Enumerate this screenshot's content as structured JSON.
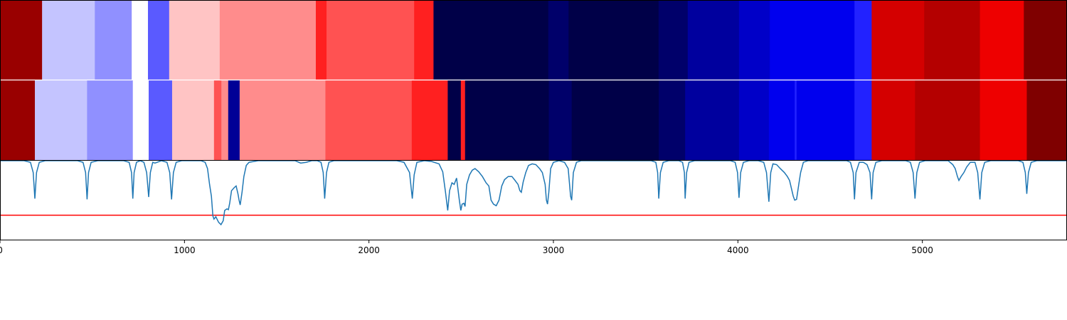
{
  "chart_data": {
    "type": "heatmap",
    "title": "",
    "xlabel": "",
    "ylabel": "",
    "xlim": [
      0,
      5784
    ],
    "grid": false,
    "legend": "none",
    "colormap": "seismic",
    "xticks": [
      {
        "value": 0,
        "label": "0"
      },
      {
        "value": 1000,
        "label": "1000"
      },
      {
        "value": 2000,
        "label": "2000"
      },
      {
        "value": 3000,
        "label": "3000"
      },
      {
        "value": 4000,
        "label": "4000"
      },
      {
        "value": 5000,
        "label": "5000"
      }
    ],
    "tracks": [
      {
        "segments": [
          {
            "start": 0,
            "end": 228,
            "color": "#990000"
          },
          {
            "start": 228,
            "end": 514,
            "color": "#c4c4ff"
          },
          {
            "start": 514,
            "end": 714,
            "color": "#9090ff"
          },
          {
            "start": 714,
            "end": 802,
            "color": "#ffffff"
          },
          {
            "start": 802,
            "end": 917,
            "color": "#5a5aff"
          },
          {
            "start": 917,
            "end": 1191,
            "color": "#ffc4c4"
          },
          {
            "start": 1191,
            "end": 1712,
            "color": "#ff8c8c"
          },
          {
            "start": 1712,
            "end": 1770,
            "color": "#ff2020"
          },
          {
            "start": 1770,
            "end": 2245,
            "color": "#ff5252"
          },
          {
            "start": 2245,
            "end": 2350,
            "color": "#ff2020"
          },
          {
            "start": 2350,
            "end": 2972,
            "color": "#000048"
          },
          {
            "start": 2972,
            "end": 3082,
            "color": "#00006a"
          },
          {
            "start": 3082,
            "end": 3570,
            "color": "#000048"
          },
          {
            "start": 3570,
            "end": 3728,
            "color": "#00006a"
          },
          {
            "start": 3728,
            "end": 4006,
            "color": "#00009e"
          },
          {
            "start": 4006,
            "end": 4173,
            "color": "#0000c8"
          },
          {
            "start": 4173,
            "end": 4632,
            "color": "#0000ee"
          },
          {
            "start": 4632,
            "end": 4725,
            "color": "#2222ff"
          },
          {
            "start": 4725,
            "end": 5010,
            "color": "#d40000"
          },
          {
            "start": 5010,
            "end": 5312,
            "color": "#b40000"
          },
          {
            "start": 5312,
            "end": 5550,
            "color": "#ee0000"
          },
          {
            "start": 5550,
            "end": 5784,
            "color": "#7f0000"
          }
        ]
      },
      {
        "segments": [
          {
            "start": 0,
            "end": 189,
            "color": "#990000"
          },
          {
            "start": 189,
            "end": 472,
            "color": "#c4c4ff"
          },
          {
            "start": 472,
            "end": 720,
            "color": "#9090ff"
          },
          {
            "start": 720,
            "end": 806,
            "color": "#ffffff"
          },
          {
            "start": 806,
            "end": 933,
            "color": "#5a5aff"
          },
          {
            "start": 933,
            "end": 1160,
            "color": "#ffc4c4"
          },
          {
            "start": 1160,
            "end": 1200,
            "color": "#ff5252"
          },
          {
            "start": 1200,
            "end": 1237,
            "color": "#ff8c8c"
          },
          {
            "start": 1237,
            "end": 1299,
            "color": "#000096"
          },
          {
            "start": 1299,
            "end": 1764,
            "color": "#ff8c8c"
          },
          {
            "start": 1764,
            "end": 2232,
            "color": "#ff5252"
          },
          {
            "start": 2232,
            "end": 2427,
            "color": "#ff2020"
          },
          {
            "start": 2427,
            "end": 2498,
            "color": "#000048"
          },
          {
            "start": 2498,
            "end": 2521,
            "color": "#ff2020"
          },
          {
            "start": 2521,
            "end": 2975,
            "color": "#000048"
          },
          {
            "start": 2975,
            "end": 3099,
            "color": "#00006a"
          },
          {
            "start": 3099,
            "end": 3571,
            "color": "#000048"
          },
          {
            "start": 3571,
            "end": 3714,
            "color": "#00006a"
          },
          {
            "start": 3714,
            "end": 4006,
            "color": "#00009e"
          },
          {
            "start": 4006,
            "end": 4168,
            "color": "#0000c8"
          },
          {
            "start": 4168,
            "end": 4308,
            "color": "#0000ee"
          },
          {
            "start": 4308,
            "end": 4318,
            "color": "#2222ff"
          },
          {
            "start": 4318,
            "end": 4632,
            "color": "#0000ee"
          },
          {
            "start": 4632,
            "end": 4725,
            "color": "#2222ff"
          },
          {
            "start": 4725,
            "end": 4960,
            "color": "#d40000"
          },
          {
            "start": 4960,
            "end": 5312,
            "color": "#b40000"
          },
          {
            "start": 5312,
            "end": 5566,
            "color": "#ee0000"
          },
          {
            "start": 5566,
            "end": 5784,
            "color": "#7f0000"
          }
        ]
      }
    ],
    "line_panel": {
      "ylim": [
        0,
        1
      ],
      "series_color": "#1f77b4",
      "threshold": {
        "value": 0.31,
        "color": "#ff0000"
      },
      "points": [
        [
          0,
          1.0
        ],
        [
          130,
          1.0
        ],
        [
          165,
          0.98
        ],
        [
          180,
          0.85
        ],
        [
          189,
          0.52
        ],
        [
          198,
          0.85
        ],
        [
          213,
          0.98
        ],
        [
          245,
          1.0
        ],
        [
          420,
          1.0
        ],
        [
          450,
          0.98
        ],
        [
          464,
          0.85
        ],
        [
          472,
          0.51
        ],
        [
          480,
          0.85
        ],
        [
          494,
          0.98
        ],
        [
          530,
          1.0
        ],
        [
          670,
          1.0
        ],
        [
          700,
          0.98
        ],
        [
          713,
          0.85
        ],
        [
          720,
          0.52
        ],
        [
          727,
          0.85
        ],
        [
          740,
          0.98
        ],
        [
          760,
          1.0
        ],
        [
          780,
          0.98
        ],
        [
          795,
          0.85
        ],
        [
          806,
          0.54
        ],
        [
          815,
          0.85
        ],
        [
          828,
          0.98
        ],
        [
          840,
          0.97
        ],
        [
          875,
          1.0
        ],
        [
          905,
          0.98
        ],
        [
          920,
          0.85
        ],
        [
          930,
          0.51
        ],
        [
          940,
          0.85
        ],
        [
          955,
          0.98
        ],
        [
          985,
          1.0
        ],
        [
          1090,
          1.0
        ],
        [
          1112,
          0.98
        ],
        [
          1125,
          0.9
        ],
        [
          1136,
          0.7
        ],
        [
          1146,
          0.55
        ],
        [
          1154,
          0.3
        ],
        [
          1160,
          0.26
        ],
        [
          1170,
          0.29
        ],
        [
          1185,
          0.22
        ],
        [
          1198,
          0.19
        ],
        [
          1210,
          0.24
        ],
        [
          1218,
          0.37
        ],
        [
          1230,
          0.39
        ],
        [
          1238,
          0.38
        ],
        [
          1245,
          0.46
        ],
        [
          1255,
          0.62
        ],
        [
          1270,
          0.66
        ],
        [
          1280,
          0.68
        ],
        [
          1290,
          0.58
        ],
        [
          1296,
          0.5
        ],
        [
          1302,
          0.44
        ],
        [
          1312,
          0.6
        ],
        [
          1322,
          0.8
        ],
        [
          1335,
          0.94
        ],
        [
          1350,
          0.98
        ],
        [
          1400,
          1.0
        ],
        [
          1600,
          1.0
        ],
        [
          1630,
          0.97
        ],
        [
          1660,
          0.98
        ],
        [
          1690,
          1.0
        ],
        [
          1720,
          1.0
        ],
        [
          1740,
          0.98
        ],
        [
          1752,
          0.85
        ],
        [
          1760,
          0.52
        ],
        [
          1770,
          0.85
        ],
        [
          1783,
          0.98
        ],
        [
          1810,
          1.0
        ],
        [
          2150,
          1.0
        ],
        [
          2190,
          0.98
        ],
        [
          2220,
          0.85
        ],
        [
          2235,
          0.52
        ],
        [
          2245,
          0.82
        ],
        [
          2260,
          0.98
        ],
        [
          2300,
          1.0
        ],
        [
          2340,
          0.99
        ],
        [
          2380,
          0.96
        ],
        [
          2400,
          0.86
        ],
        [
          2415,
          0.6
        ],
        [
          2427,
          0.37
        ],
        [
          2437,
          0.62
        ],
        [
          2450,
          0.72
        ],
        [
          2462,
          0.7
        ],
        [
          2475,
          0.78
        ],
        [
          2490,
          0.5
        ],
        [
          2498,
          0.37
        ],
        [
          2505,
          0.45
        ],
        [
          2515,
          0.46
        ],
        [
          2521,
          0.42
        ],
        [
          2530,
          0.7
        ],
        [
          2545,
          0.82
        ],
        [
          2560,
          0.88
        ],
        [
          2575,
          0.9
        ],
        [
          2595,
          0.86
        ],
        [
          2615,
          0.8
        ],
        [
          2635,
          0.72
        ],
        [
          2650,
          0.68
        ],
        [
          2662,
          0.5
        ],
        [
          2675,
          0.45
        ],
        [
          2690,
          0.43
        ],
        [
          2705,
          0.5
        ],
        [
          2720,
          0.68
        ],
        [
          2735,
          0.76
        ],
        [
          2755,
          0.8
        ],
        [
          2775,
          0.8
        ],
        [
          2792,
          0.75
        ],
        [
          2808,
          0.7
        ],
        [
          2818,
          0.62
        ],
        [
          2826,
          0.6
        ],
        [
          2836,
          0.73
        ],
        [
          2850,
          0.85
        ],
        [
          2865,
          0.94
        ],
        [
          2885,
          0.96
        ],
        [
          2905,
          0.95
        ],
        [
          2925,
          0.9
        ],
        [
          2940,
          0.85
        ],
        [
          2955,
          0.7
        ],
        [
          2962,
          0.5
        ],
        [
          2968,
          0.45
        ],
        [
          2975,
          0.6
        ],
        [
          2985,
          0.9
        ],
        [
          3000,
          0.98
        ],
        [
          3030,
          1.0
        ],
        [
          3060,
          0.98
        ],
        [
          3080,
          0.9
        ],
        [
          3093,
          0.55
        ],
        [
          3099,
          0.5
        ],
        [
          3108,
          0.85
        ],
        [
          3125,
          0.98
        ],
        [
          3150,
          1.0
        ],
        [
          3530,
          1.0
        ],
        [
          3555,
          0.98
        ],
        [
          3565,
          0.85
        ],
        [
          3571,
          0.52
        ],
        [
          3580,
          0.85
        ],
        [
          3595,
          0.98
        ],
        [
          3625,
          1.0
        ],
        [
          3680,
          1.0
        ],
        [
          3700,
          0.98
        ],
        [
          3710,
          0.85
        ],
        [
          3714,
          0.52
        ],
        [
          3722,
          0.85
        ],
        [
          3735,
          0.98
        ],
        [
          3765,
          1.0
        ],
        [
          3960,
          1.0
        ],
        [
          3985,
          0.98
        ],
        [
          3998,
          0.85
        ],
        [
          4006,
          0.53
        ],
        [
          4015,
          0.85
        ],
        [
          4030,
          0.98
        ],
        [
          4060,
          1.0
        ],
        [
          4110,
          1.0
        ],
        [
          4140,
          0.98
        ],
        [
          4155,
          0.85
        ],
        [
          4168,
          0.48
        ],
        [
          4178,
          0.85
        ],
        [
          4190,
          0.96
        ],
        [
          4210,
          0.95
        ],
        [
          4230,
          0.9
        ],
        [
          4252,
          0.85
        ],
        [
          4268,
          0.8
        ],
        [
          4280,
          0.75
        ],
        [
          4290,
          0.65
        ],
        [
          4300,
          0.55
        ],
        [
          4308,
          0.5
        ],
        [
          4318,
          0.51
        ],
        [
          4330,
          0.7
        ],
        [
          4340,
          0.85
        ],
        [
          4355,
          0.98
        ],
        [
          4380,
          1.0
        ],
        [
          4590,
          1.0
        ],
        [
          4610,
          0.98
        ],
        [
          4625,
          0.85
        ],
        [
          4632,
          0.51
        ],
        [
          4640,
          0.85
        ],
        [
          4658,
          0.98
        ],
        [
          4680,
          0.98
        ],
        [
          4700,
          0.95
        ],
        [
          4716,
          0.85
        ],
        [
          4725,
          0.51
        ],
        [
          4733,
          0.85
        ],
        [
          4748,
          0.98
        ],
        [
          4780,
          1.0
        ],
        [
          4910,
          1.0
        ],
        [
          4935,
          0.98
        ],
        [
          4950,
          0.85
        ],
        [
          4960,
          0.52
        ],
        [
          4970,
          0.85
        ],
        [
          4985,
          0.98
        ],
        [
          5015,
          1.0
        ],
        [
          5140,
          1.0
        ],
        [
          5165,
          0.95
        ],
        [
          5178,
          0.9
        ],
        [
          5190,
          0.8
        ],
        [
          5198,
          0.75
        ],
        [
          5210,
          0.8
        ],
        [
          5225,
          0.85
        ],
        [
          5240,
          0.92
        ],
        [
          5260,
          0.98
        ],
        [
          5285,
          0.98
        ],
        [
          5300,
          0.85
        ],
        [
          5312,
          0.51
        ],
        [
          5322,
          0.85
        ],
        [
          5338,
          0.98
        ],
        [
          5370,
          1.0
        ],
        [
          5520,
          1.0
        ],
        [
          5545,
          0.98
        ],
        [
          5558,
          0.85
        ],
        [
          5566,
          0.58
        ],
        [
          5575,
          0.85
        ],
        [
          5590,
          0.98
        ],
        [
          5620,
          1.0
        ],
        [
          5784,
          1.0
        ]
      ]
    }
  }
}
